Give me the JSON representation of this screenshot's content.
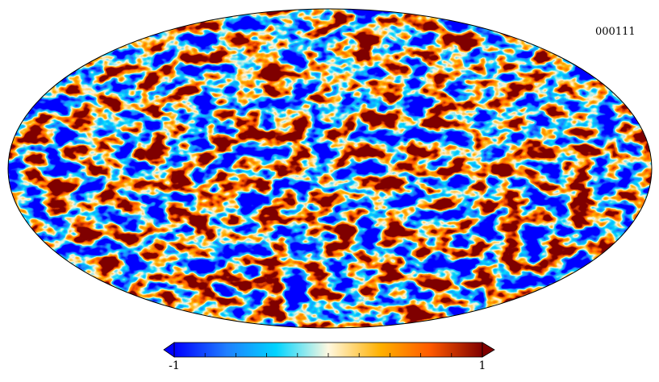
{
  "map": {
    "id_label": "000111",
    "projection": "mollweide",
    "field": "random-temperature-fluctuations"
  },
  "colorbar": {
    "min_label": "-1",
    "max_label": "1",
    "min": -1,
    "max": 1,
    "ticks": [
      -1,
      -0.8,
      -0.6,
      -0.4,
      -0.2,
      0,
      0.2,
      0.4,
      0.6,
      0.8,
      1
    ],
    "colormap": [
      "#0000ff",
      "#1f7fff",
      "#00d4ff",
      "#fff8e0",
      "#ffb000",
      "#ff5a00",
      "#800000"
    ]
  }
}
